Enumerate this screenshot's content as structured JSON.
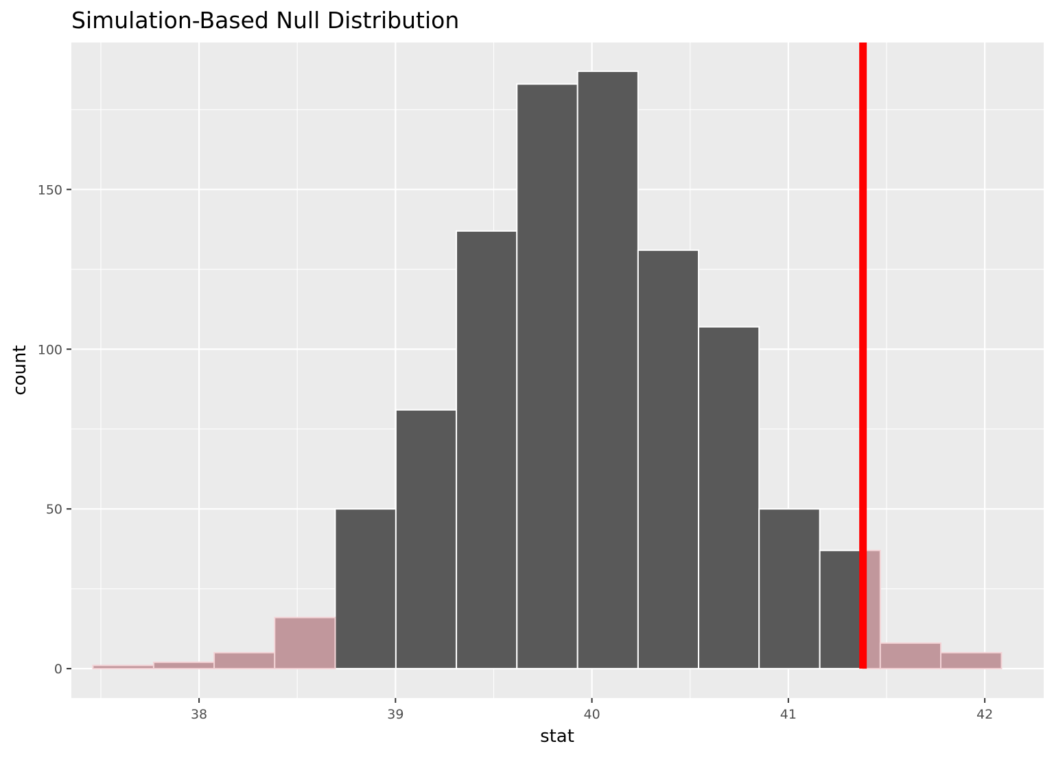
{
  "chart_data": {
    "type": "histogram",
    "title": "Simulation-Based Null Distribution",
    "xlabel": "stat",
    "ylabel": "count",
    "xlim": [
      37.35,
      42.3
    ],
    "ylim": [
      -9.2,
      196
    ],
    "x_ticks": [
      38,
      39,
      40,
      41,
      42
    ],
    "x_tick_labels": [
      "38",
      "39",
      "40",
      "41",
      "42"
    ],
    "y_ticks": [
      0,
      50,
      100,
      150
    ],
    "y_tick_labels": [
      "0",
      "50",
      "100",
      "150"
    ],
    "grid": true,
    "bin_width": 0.3083,
    "bins": [
      {
        "x_start": 37.46,
        "x_end": 37.769,
        "count": 1,
        "shaded": true
      },
      {
        "x_start": 37.769,
        "x_end": 38.077,
        "count": 2,
        "shaded": true
      },
      {
        "x_start": 38.077,
        "x_end": 38.385,
        "count": 5,
        "shaded": true
      },
      {
        "x_start": 38.385,
        "x_end": 38.693,
        "count": 16,
        "shaded": true
      },
      {
        "x_start": 38.693,
        "x_end": 39.002,
        "count": 50,
        "shaded": false
      },
      {
        "x_start": 39.002,
        "x_end": 39.31,
        "count": 81,
        "shaded": false
      },
      {
        "x_start": 39.31,
        "x_end": 39.618,
        "count": 137,
        "shaded": false
      },
      {
        "x_start": 39.618,
        "x_end": 39.927,
        "count": 183,
        "shaded": false
      },
      {
        "x_start": 39.927,
        "x_end": 40.235,
        "count": 187,
        "shaded": false
      },
      {
        "x_start": 40.235,
        "x_end": 40.543,
        "count": 131,
        "shaded": false
      },
      {
        "x_start": 40.543,
        "x_end": 40.851,
        "count": 107,
        "shaded": false
      },
      {
        "x_start": 40.851,
        "x_end": 41.16,
        "count": 50,
        "shaded": false
      },
      {
        "x_start": 41.16,
        "x_end": 41.468,
        "count": 37,
        "shaded": "partial"
      },
      {
        "x_start": 41.468,
        "x_end": 41.776,
        "count": 8,
        "shaded": true
      },
      {
        "x_start": 41.776,
        "x_end": 42.085,
        "count": 5,
        "shaded": true
      }
    ],
    "observed_stat": 41.38,
    "colors": {
      "panel_background": "#ebebeb",
      "grid": "#ffffff",
      "bar_fill": "#595959",
      "bar_outline": "#ffffff",
      "shade_fill": "#c1979c",
      "shade_outline": "#f3d3d6",
      "observed_line": "#ff0000",
      "tick_label": "#4d4d4d",
      "tick_mark": "#333333",
      "text": "#000000"
    }
  }
}
